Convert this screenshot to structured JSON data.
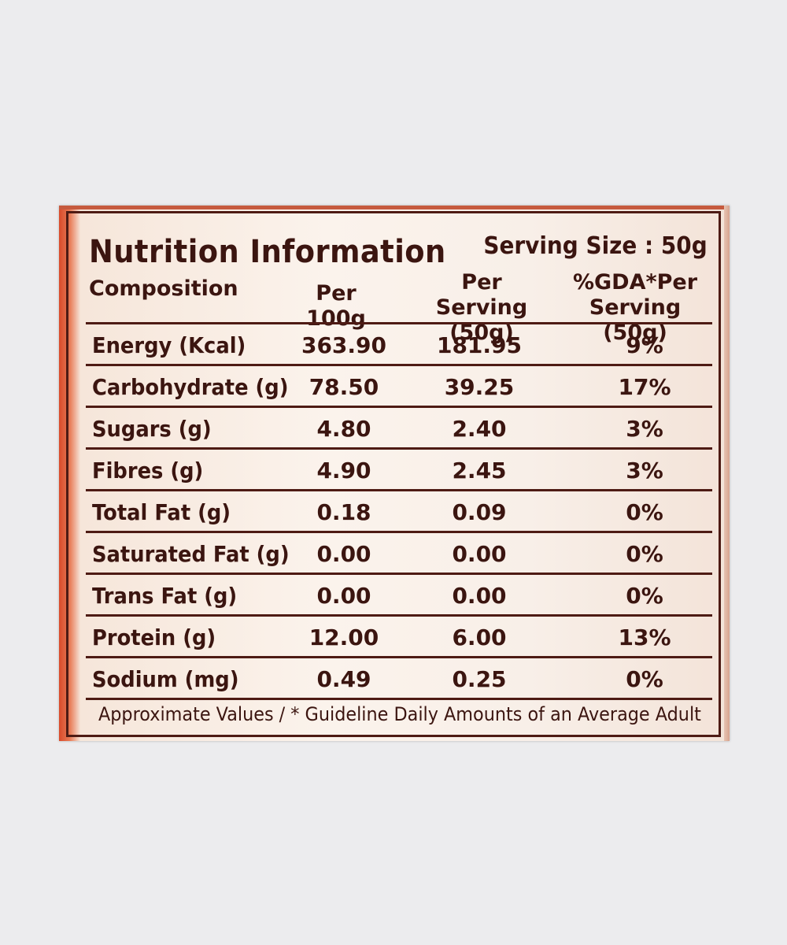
{
  "label": {
    "title": "Nutrition Information",
    "serving_size": "Serving Size : 50g",
    "columns": {
      "composition": "Composition",
      "per_100g": "Per 100g",
      "per_serving_line1": "Per Serving",
      "per_serving_line2": "(50g)",
      "gda_line1": "%GDA*Per",
      "gda_line2": "Serving (50g)"
    },
    "rows": [
      {
        "name": "Energy (Kcal)",
        "per_100g": "363.90",
        "per_serving": "181.95",
        "gda": "9%"
      },
      {
        "name": "Carbohydrate (g)",
        "per_100g": "78.50",
        "per_serving": "39.25",
        "gda": "17%"
      },
      {
        "name": "Sugars (g)",
        "per_100g": "4.80",
        "per_serving": "2.40",
        "gda": "3%"
      },
      {
        "name": "Fibres (g)",
        "per_100g": "4.90",
        "per_serving": "2.45",
        "gda": "3%"
      },
      {
        "name": "Total Fat (g)",
        "per_100g": "0.18",
        "per_serving": "0.09",
        "gda": "0%"
      },
      {
        "name": "Saturated Fat (g)",
        "per_100g": "0.00",
        "per_serving": "0.00",
        "gda": "0%"
      },
      {
        "name": "Trans Fat (g)",
        "per_100g": "0.00",
        "per_serving": "0.00",
        "gda": "0%"
      },
      {
        "name": "Protein (g)",
        "per_100g": "12.00",
        "per_serving": "6.00",
        "gda": "13%"
      },
      {
        "name": "Sodium (mg)",
        "per_100g": "0.49",
        "per_serving": "0.25",
        "gda": "0%"
      }
    ],
    "footnote": "Approximate Values / * Guideline Daily Amounts of an Average Adult"
  },
  "colors": {
    "ink": "#3b1510",
    "paper": "#fbf3ec",
    "packaging_red": "#d94a2a",
    "background": "#ececee"
  }
}
